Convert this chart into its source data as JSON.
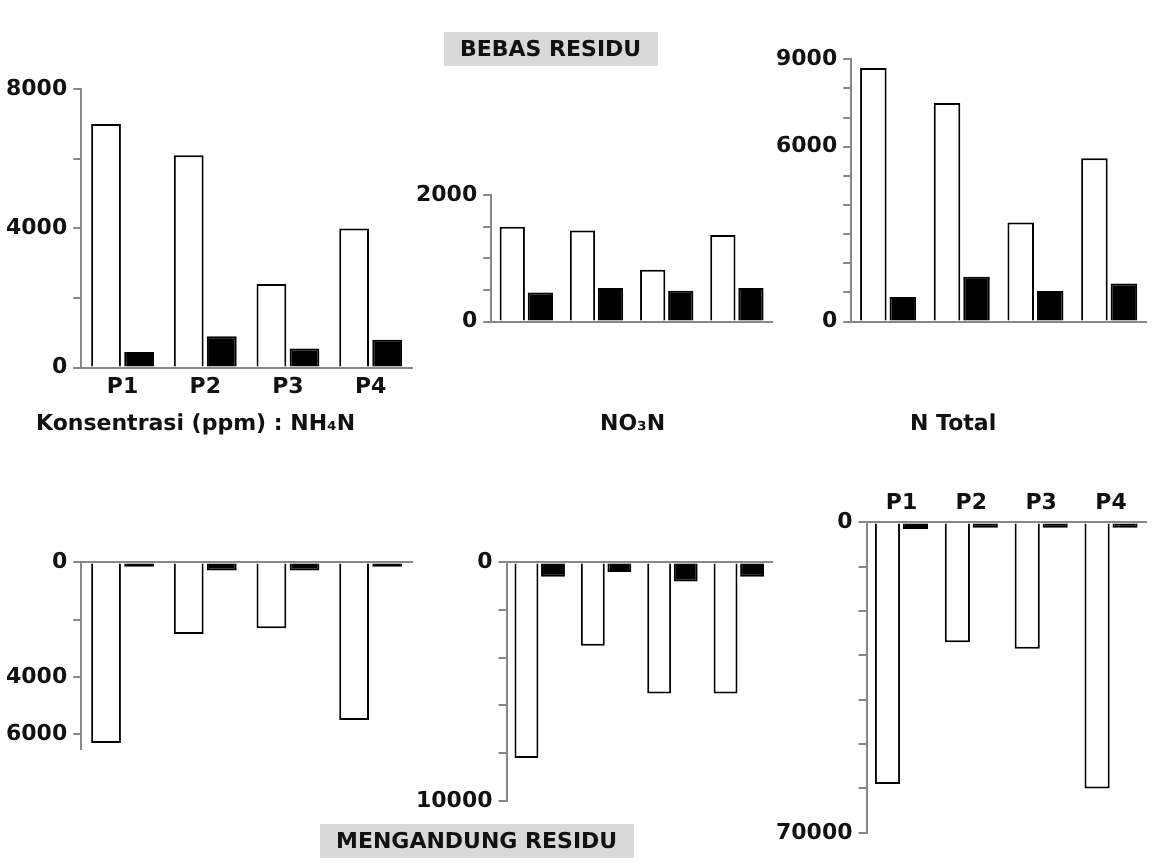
{
  "chart_data": [
    {
      "type": "bar",
      "xlabel": "Konsentrasi (ppm) :  NH₄N",
      "categories": [
        "P1",
        "P2",
        "P3",
        "P4"
      ],
      "series": [
        {
          "color": "#ffffff",
          "values": [
            7000,
            6100,
            2400,
            4000
          ]
        },
        {
          "color": "#000000",
          "values": [
            450,
            900,
            550,
            800
          ]
        }
      ],
      "ylim": [
        0,
        8000
      ],
      "yticks": [
        0,
        {
          "value": 2000,
          "label": null
        },
        4000,
        {
          "value": 6000,
          "label": null
        },
        8000
      ],
      "grid": false,
      "legend": false
    },
    {
      "type": "bar",
      "xlabel": "NO₃N",
      "annotations": [
        "BEBAS RESIDU"
      ],
      "categories": [
        null,
        null,
        null,
        null
      ],
      "series": [
        {
          "color": "#ffffff",
          "values": [
            1500,
            1440,
            820,
            1370
          ]
        },
        {
          "color": "#000000",
          "values": [
            460,
            530,
            490,
            530
          ]
        }
      ],
      "ylim": [
        0,
        2000
      ],
      "yticks": [
        0,
        {
          "value": 500,
          "label": null
        },
        {
          "value": 1000,
          "label": null
        },
        {
          "value": 1500,
          "label": null
        },
        2000
      ],
      "grid": false,
      "legend": false
    },
    {
      "type": "bar",
      "xlabel": "N Total",
      "categories": [
        null,
        null,
        null,
        null
      ],
      "series": [
        {
          "color": "#ffffff",
          "values": [
            8700,
            7500,
            3400,
            5600
          ]
        },
        {
          "color": "#000000",
          "values": [
            840,
            1540,
            1050,
            1310
          ]
        }
      ],
      "ylim": [
        0,
        9000
      ],
      "yticks": [
        0,
        {
          "value": 1000,
          "label": null
        },
        {
          "value": 2000,
          "label": null
        },
        {
          "value": 3000,
          "label": null
        },
        {
          "value": 4000,
          "label": null
        },
        {
          "value": 5000,
          "label": null
        },
        6000,
        {
          "value": 7000,
          "label": null
        },
        {
          "value": 8000,
          "label": null
        },
        9000
      ],
      "grid": false,
      "legend": false
    },
    {
      "type": "bar",
      "categories": [
        null,
        null,
        null,
        null
      ],
      "series": [
        {
          "color": "#ffffff",
          "values": [
            6300,
            2500,
            2300,
            5500
          ]
        },
        {
          "color": "#000000",
          "values": [
            150,
            280,
            280,
            150
          ]
        }
      ],
      "ylim": [
        6500,
        0
      ],
      "yticks": [
        0,
        {
          "value": 2000,
          "label": null
        },
        4000,
        6000
      ],
      "grid": false,
      "legend": false
    },
    {
      "type": "bar",
      "annotations": [
        "MENGANDUNG RESIDU"
      ],
      "categories": [
        null,
        null,
        null,
        null
      ],
      "series": [
        {
          "color": "#ffffff",
          "values": [
            8200,
            3500,
            5500,
            5500
          ]
        },
        {
          "color": "#000000",
          "values": [
            600,
            400,
            800,
            600
          ]
        }
      ],
      "ylim": [
        10000,
        0
      ],
      "yticks": [
        0,
        {
          "value": 2000,
          "label": null
        },
        {
          "value": 4000,
          "label": null
        },
        {
          "value": 6000,
          "label": null
        },
        {
          "value": 8000,
          "label": null
        },
        10000
      ],
      "grid": false,
      "legend": false
    },
    {
      "type": "bar",
      "categories": [
        "P1",
        "P2",
        "P3",
        "P4"
      ],
      "series": [
        {
          "color": "#ffffff",
          "values": [
            59000,
            27000,
            28500,
            60000
          ]
        },
        {
          "color": "#000000",
          "values": [
            1500,
            1200,
            1200,
            1200
          ]
        }
      ],
      "ylim": [
        70000,
        0
      ],
      "yticks": [
        0,
        {
          "value": 10000,
          "label": null
        },
        {
          "value": 20000,
          "label": null
        },
        {
          "value": 30000,
          "label": null
        },
        {
          "value": 40000,
          "label": null
        },
        {
          "value": 50000,
          "label": null
        },
        {
          "value": 60000,
          "label": null
        },
        70000
      ],
      "grid": false,
      "legend": false
    }
  ]
}
